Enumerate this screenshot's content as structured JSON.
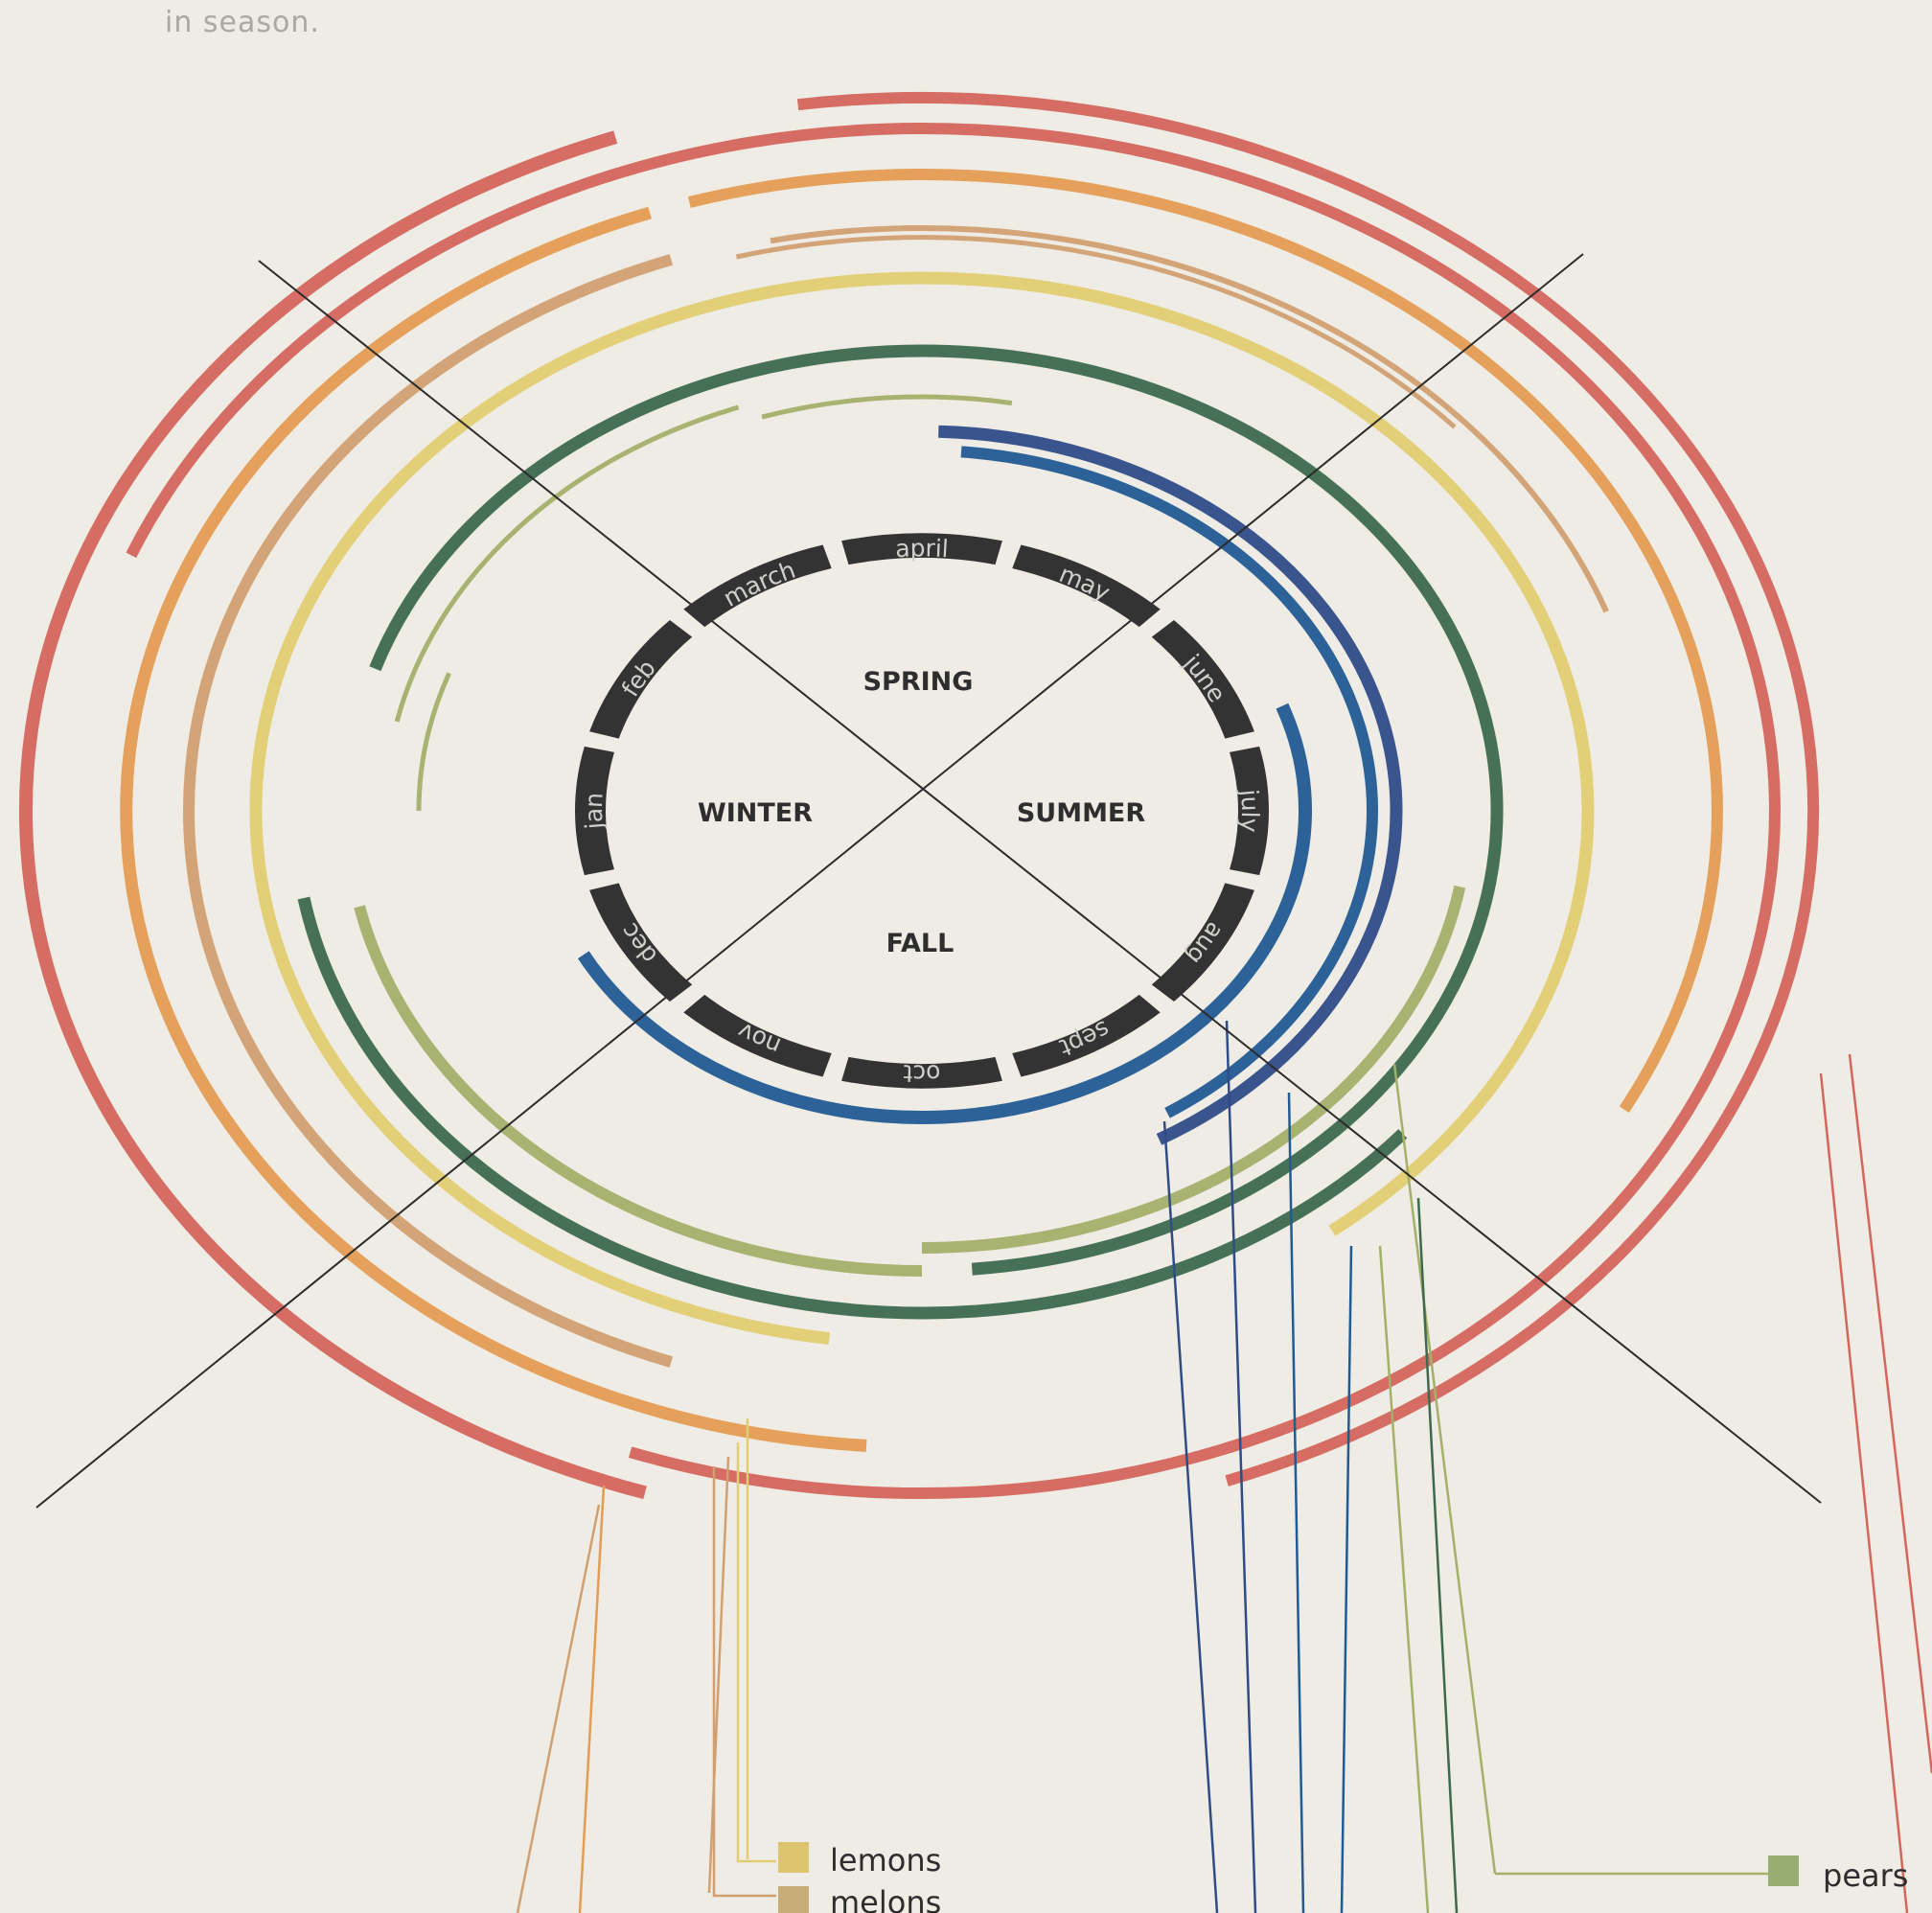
{
  "intro_text": "in season.",
  "seasons": [
    {
      "label": "SPRING"
    },
    {
      "label": "SUMMER"
    },
    {
      "label": "FALL"
    },
    {
      "label": "WINTER"
    }
  ],
  "months": [
    "jan",
    "feb",
    "march",
    "april",
    "may",
    "june",
    "july",
    "aug",
    "sept",
    "oct",
    "nov",
    "dec"
  ],
  "legend": [
    {
      "label": "lemons",
      "color": "#dcc56e"
    },
    {
      "label": "melons",
      "color": "#c9ad78"
    },
    {
      "label": "pears",
      "color": "#98ad72"
    }
  ],
  "colors": {
    "red": "#d3665d",
    "orange": "#e49c53",
    "tan": "#d1a072",
    "yellow": "#e2ce72",
    "dark_green": "#3d6a4e",
    "olive": "#a3b06a",
    "blue": "#215b93",
    "navy": "#2f4c88",
    "month_ring": "#333333"
  }
}
